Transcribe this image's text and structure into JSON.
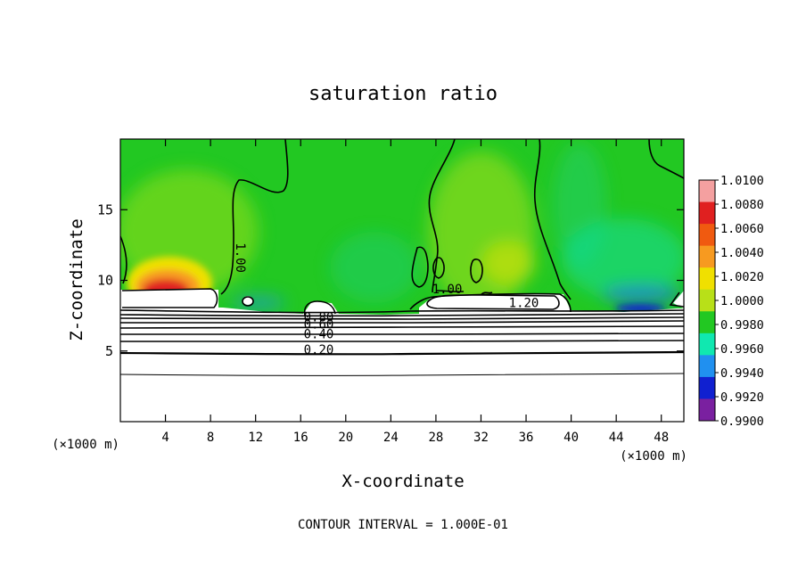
{
  "chart_data": {
    "type": "heatmap",
    "title": "saturation ratio",
    "xlabel": "X-coordinate",
    "ylabel": "Z-coordinate",
    "x_unit_left": "(×1000 m)",
    "x_unit_right": "(×1000 m)",
    "footer": "CONTOUR INTERVAL = 1.000E-01",
    "xlim": [
      0,
      50
    ],
    "ylim": [
      0,
      20
    ],
    "x_ticks": [
      4,
      8,
      12,
      16,
      20,
      24,
      28,
      32,
      36,
      40,
      44,
      48
    ],
    "y_ticks": [
      5,
      10,
      15
    ],
    "colorbar": {
      "range": [
        0.99,
        1.01
      ],
      "labels": [
        "1.0100",
        "1.0080",
        "1.0060",
        "1.0040",
        "1.0020",
        "1.0000",
        "0.9980",
        "0.9960",
        "0.9940",
        "0.9920",
        "0.9900"
      ],
      "colors": [
        "#f4a0a0",
        "#e02020",
        "#f05a10",
        "#f79a20",
        "#f0e000",
        "#b8e018",
        "#22c822",
        "#10e8b0",
        "#2090f0",
        "#1020d0",
        "#7a20a0"
      ]
    },
    "contour_labels": [
      {
        "text": "1.00",
        "x": 10.3,
        "z": 11.6,
        "rotate": 90
      },
      {
        "text": "1.00",
        "x": 29.0,
        "z": 9.1
      },
      {
        "text": "1.20",
        "x": 35.8,
        "z": 8.1
      },
      {
        "text": "0.80",
        "x": 17.6,
        "z": 7.1
      },
      {
        "text": "0.60",
        "x": 17.6,
        "z": 6.6
      },
      {
        "text": "0.40",
        "x": 17.6,
        "z": 5.9
      },
      {
        "text": "0.20",
        "x": 17.6,
        "z": 4.8
      }
    ],
    "annotations": []
  }
}
